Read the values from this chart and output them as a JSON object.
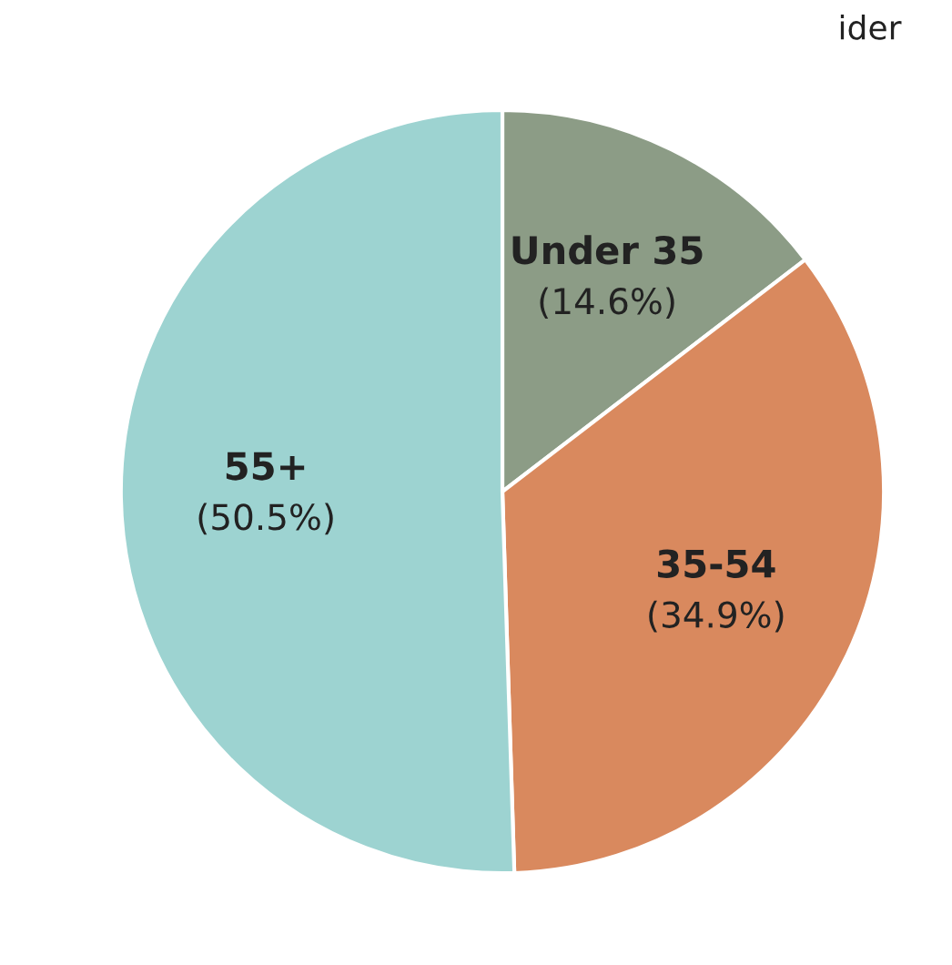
{
  "chart_data": {
    "type": "pie",
    "categories": [
      "Under 35",
      "35-54",
      "55+"
    ],
    "values": [
      14.6,
      34.9,
      50.5
    ],
    "value_labels": [
      "(14.6%)",
      "(34.9%)",
      "(50.5%)"
    ],
    "colors": [
      "#8c9c86",
      "#d9895e",
      "#9dd3d1"
    ],
    "annotations": [
      "ider"
    ]
  }
}
